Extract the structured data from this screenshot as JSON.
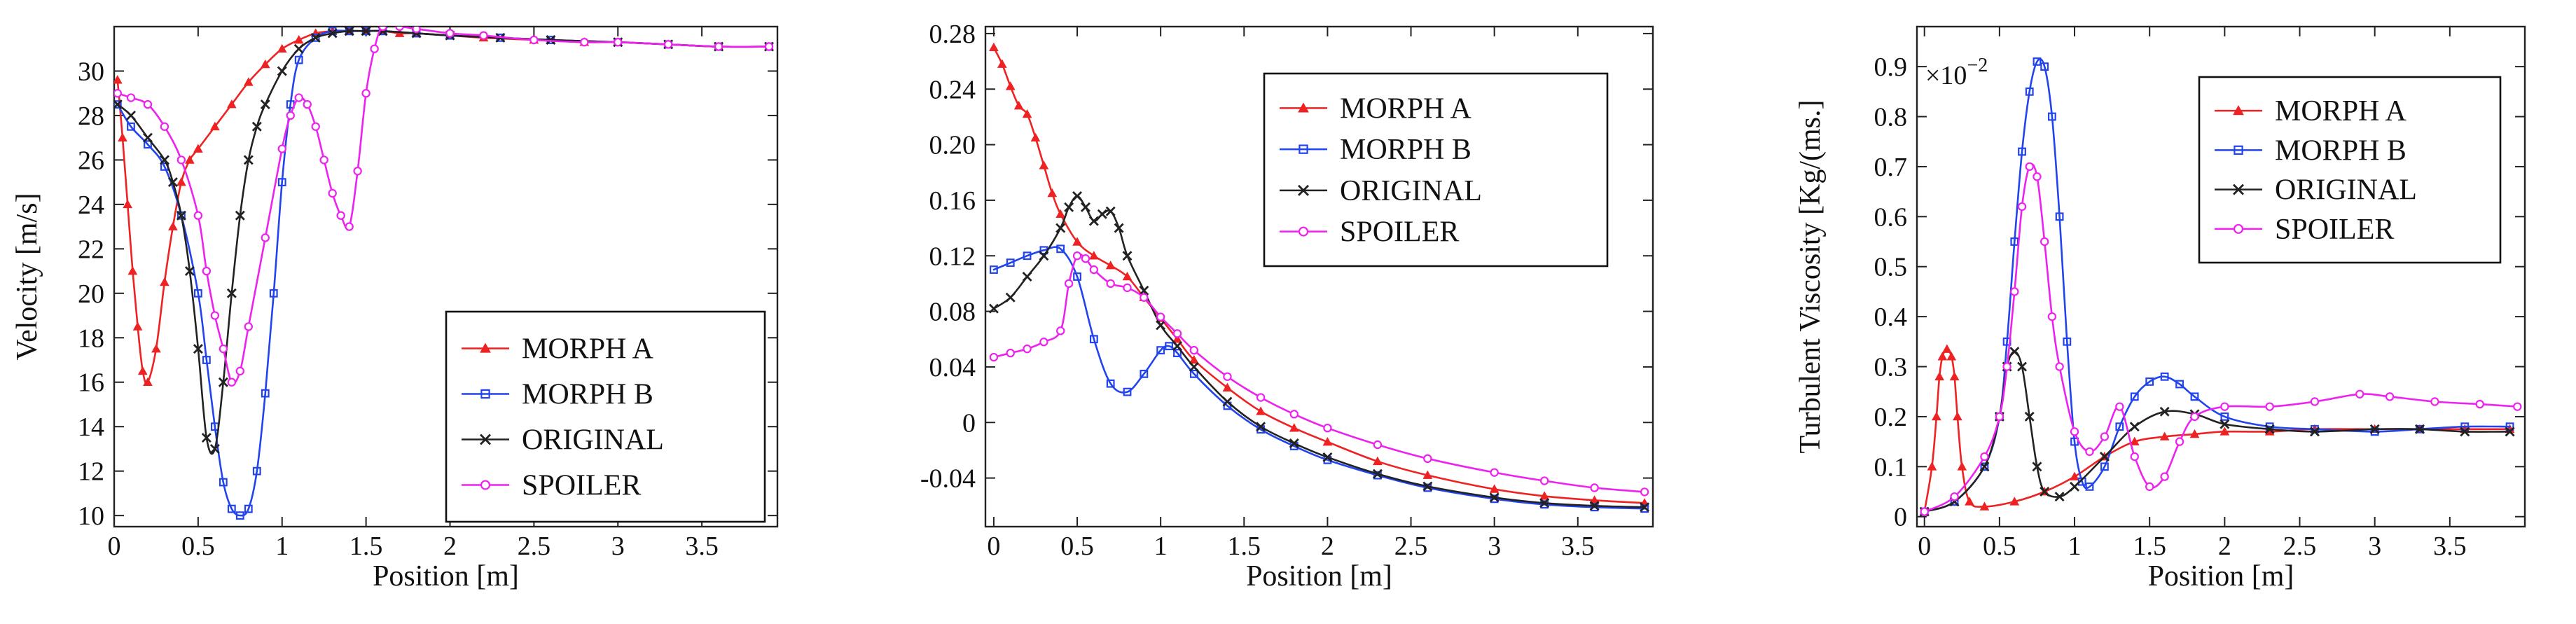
{
  "chart_data": [
    {
      "type": "line",
      "title": "",
      "xlabel": "Position [m]",
      "ylabel": "Velocity [m/s]",
      "xlim": [
        0,
        3.95
      ],
      "ylim": [
        9.5,
        32
      ],
      "xticks": [
        0,
        0.5,
        1,
        1.5,
        2,
        2.5,
        3,
        3.5
      ],
      "xtick_labels": [
        "0",
        "0.5",
        "1",
        "1.5",
        "2",
        "2.5",
        "3",
        "3.5"
      ],
      "yticks": [
        10,
        12,
        14,
        16,
        18,
        20,
        22,
        24,
        26,
        28,
        30
      ],
      "ytick_labels": [
        "10",
        "12",
        "14",
        "16",
        "18",
        "20",
        "22",
        "24",
        "26",
        "28",
        "30"
      ],
      "multiplier": "",
      "legend_position": "bottom-right",
      "series": [
        {
          "name": "MORPH A",
          "color": "#ee2222",
          "marker": "triangle",
          "x": [
            0.02,
            0.05,
            0.08,
            0.11,
            0.14,
            0.17,
            0.2,
            0.25,
            0.3,
            0.35,
            0.4,
            0.45,
            0.5,
            0.6,
            0.7,
            0.8,
            0.9,
            1.0,
            1.1,
            1.2,
            1.3,
            1.4,
            1.5,
            1.6,
            1.7,
            1.8,
            2.0,
            2.2,
            2.5,
            2.8,
            3.0,
            3.3,
            3.6,
            3.9
          ],
          "y": [
            29.6,
            27,
            24,
            21,
            18.5,
            16.5,
            16,
            17.5,
            20.5,
            23,
            25,
            26,
            26.5,
            27.5,
            28.5,
            29.5,
            30.3,
            31,
            31.4,
            31.7,
            31.8,
            31.8,
            31.8,
            31.8,
            31.7,
            31.7,
            31.6,
            31.5,
            31.4,
            31.3,
            31.3,
            31.2,
            31.1,
            31.1
          ]
        },
        {
          "name": "MORPH B",
          "color": "#2244ee",
          "marker": "square",
          "x": [
            0.02,
            0.1,
            0.2,
            0.3,
            0.4,
            0.5,
            0.55,
            0.6,
            0.65,
            0.7,
            0.75,
            0.8,
            0.85,
            0.9,
            0.95,
            1.0,
            1.05,
            1.1,
            1.2,
            1.3,
            1.4,
            1.5,
            1.6,
            1.8,
            2.0,
            2.3,
            2.6,
            3.0,
            3.3,
            3.6,
            3.9
          ],
          "y": [
            28.5,
            27.5,
            26.7,
            25.7,
            23.5,
            20,
            17,
            14,
            11.5,
            10.3,
            10,
            10.3,
            12,
            15.5,
            20,
            25,
            28.5,
            30.5,
            31.5,
            31.8,
            31.8,
            31.8,
            31.8,
            31.7,
            31.6,
            31.5,
            31.4,
            31.3,
            31.2,
            31.1,
            31.1
          ]
        },
        {
          "name": "ORIGINAL",
          "color": "#222222",
          "marker": "x",
          "x": [
            0.02,
            0.1,
            0.2,
            0.3,
            0.35,
            0.4,
            0.45,
            0.5,
            0.55,
            0.6,
            0.65,
            0.7,
            0.75,
            0.8,
            0.85,
            0.9,
            1.0,
            1.1,
            1.2,
            1.3,
            1.4,
            1.5,
            1.6,
            1.8,
            2.0,
            2.3,
            2.6,
            3.0,
            3.3,
            3.6,
            3.9
          ],
          "y": [
            28.5,
            28,
            27,
            26,
            25,
            23.5,
            21,
            17.5,
            13.5,
            13,
            16,
            20,
            23.5,
            26,
            27.5,
            28.5,
            30,
            31,
            31.5,
            31.7,
            31.8,
            31.8,
            31.8,
            31.7,
            31.6,
            31.5,
            31.4,
            31.3,
            31.2,
            31.1,
            31.1
          ]
        },
        {
          "name": "SPOILER",
          "color": "#ee22ee",
          "marker": "circle",
          "x": [
            0.02,
            0.1,
            0.2,
            0.3,
            0.4,
            0.5,
            0.55,
            0.6,
            0.65,
            0.7,
            0.75,
            0.8,
            0.9,
            1.0,
            1.05,
            1.1,
            1.15,
            1.2,
            1.25,
            1.3,
            1.35,
            1.4,
            1.45,
            1.5,
            1.55,
            1.6,
            1.7,
            1.8,
            2.0,
            2.2,
            2.5,
            2.8,
            3.0,
            3.3,
            3.6,
            3.9
          ],
          "y": [
            29,
            28.8,
            28.5,
            27.5,
            26,
            23.5,
            21,
            19,
            17.5,
            16,
            16.5,
            18.5,
            22.5,
            26.5,
            28,
            28.8,
            28.5,
            27.5,
            26,
            24.5,
            23.5,
            23,
            25.5,
            29,
            31,
            32,
            32,
            31.9,
            31.7,
            31.6,
            31.4,
            31.3,
            31.3,
            31.2,
            31.1,
            31.1
          ]
        }
      ]
    },
    {
      "type": "line",
      "title": "",
      "xlabel": "Position [m]",
      "ylabel": "",
      "xlim": [
        -0.05,
        3.95
      ],
      "ylim": [
        -0.075,
        0.285
      ],
      "xticks": [
        0,
        0.5,
        1,
        1.5,
        2,
        2.5,
        3,
        3.5
      ],
      "xtick_labels": [
        "0",
        "0.5",
        "1",
        "1.5",
        "2",
        "2.5",
        "3",
        "3.5"
      ],
      "yticks": [
        -0.04,
        0,
        0.04,
        0.08,
        0.12,
        0.16,
        0.2,
        0.24,
        0.28
      ],
      "ytick_labels": [
        "-0.04",
        "0",
        "0.04",
        "0.08",
        "0.12",
        "0.16",
        "0.20",
        "0.24",
        "0.28"
      ],
      "multiplier": "",
      "legend_position": "top-right",
      "series": [
        {
          "name": "MORPH A",
          "color": "#ee2222",
          "marker": "triangle",
          "x": [
            0.0,
            0.05,
            0.1,
            0.15,
            0.2,
            0.25,
            0.3,
            0.35,
            0.4,
            0.5,
            0.6,
            0.7,
            0.8,
            0.9,
            1.0,
            1.1,
            1.2,
            1.4,
            1.6,
            1.8,
            2.0,
            2.3,
            2.6,
            3.0,
            3.3,
            3.6,
            3.9
          ],
          "y": [
            0.27,
            0.258,
            0.242,
            0.228,
            0.222,
            0.205,
            0.185,
            0.165,
            0.15,
            0.13,
            0.12,
            0.113,
            0.105,
            0.09,
            0.075,
            0.06,
            0.045,
            0.025,
            0.008,
            -0.004,
            -0.014,
            -0.028,
            -0.038,
            -0.048,
            -0.053,
            -0.056,
            -0.058
          ]
        },
        {
          "name": "MORPH B",
          "color": "#2244ee",
          "marker": "square",
          "x": [
            0.0,
            0.1,
            0.2,
            0.3,
            0.4,
            0.5,
            0.6,
            0.7,
            0.8,
            0.9,
            1.0,
            1.05,
            1.1,
            1.2,
            1.4,
            1.6,
            1.8,
            2.0,
            2.3,
            2.6,
            3.0,
            3.3,
            3.6,
            3.9
          ],
          "y": [
            0.11,
            0.115,
            0.12,
            0.124,
            0.125,
            0.105,
            0.06,
            0.028,
            0.022,
            0.035,
            0.052,
            0.055,
            0.05,
            0.035,
            0.012,
            -0.005,
            -0.017,
            -0.027,
            -0.038,
            -0.047,
            -0.055,
            -0.059,
            -0.061,
            -0.062
          ]
        },
        {
          "name": "ORIGINAL",
          "color": "#222222",
          "marker": "x",
          "x": [
            0.0,
            0.1,
            0.2,
            0.3,
            0.4,
            0.45,
            0.5,
            0.55,
            0.6,
            0.65,
            0.7,
            0.75,
            0.8,
            0.9,
            1.0,
            1.1,
            1.2,
            1.4,
            1.6,
            1.8,
            2.0,
            2.3,
            2.6,
            3.0,
            3.3,
            3.6,
            3.9
          ],
          "y": [
            0.082,
            0.09,
            0.105,
            0.12,
            0.14,
            0.155,
            0.163,
            0.155,
            0.145,
            0.15,
            0.152,
            0.14,
            0.12,
            0.095,
            0.07,
            0.055,
            0.04,
            0.015,
            -0.003,
            -0.015,
            -0.025,
            -0.037,
            -0.046,
            -0.054,
            -0.058,
            -0.06,
            -0.061
          ]
        },
        {
          "name": "SPOILER",
          "color": "#ee22ee",
          "marker": "circle",
          "x": [
            0.0,
            0.1,
            0.2,
            0.3,
            0.4,
            0.45,
            0.5,
            0.55,
            0.6,
            0.7,
            0.8,
            0.9,
            1.0,
            1.1,
            1.2,
            1.4,
            1.6,
            1.8,
            2.0,
            2.3,
            2.6,
            3.0,
            3.3,
            3.6,
            3.9
          ],
          "y": [
            0.047,
            0.05,
            0.053,
            0.058,
            0.066,
            0.1,
            0.12,
            0.118,
            0.11,
            0.1,
            0.097,
            0.09,
            0.076,
            0.064,
            0.052,
            0.033,
            0.018,
            0.006,
            -0.004,
            -0.016,
            -0.026,
            -0.036,
            -0.042,
            -0.047,
            -0.05
          ]
        }
      ]
    },
    {
      "type": "line",
      "title": "",
      "xlabel": "Position [m]",
      "ylabel": "Turbulent Viscosity [Kg/(ms.]",
      "xlim": [
        -0.05,
        4.0
      ],
      "ylim": [
        -0.02,
        0.98
      ],
      "xticks": [
        0,
        0.5,
        1,
        1.5,
        2,
        2.5,
        3,
        3.5
      ],
      "xtick_labels": [
        "0",
        "0.5",
        "1",
        "1.5",
        "2",
        "2.5",
        "3",
        "3.5"
      ],
      "yticks": [
        0,
        0.1,
        0.2,
        0.3,
        0.4,
        0.5,
        0.6,
        0.7,
        0.8,
        0.9
      ],
      "ytick_labels": [
        "0",
        "0.1",
        "0.2",
        "0.3",
        "0.4",
        "0.5",
        "0.6",
        "0.7",
        "0.8",
        "0.9"
      ],
      "multiplier": "×10",
      "multiplier_exponent": "−2",
      "legend_position": "top-right",
      "series": [
        {
          "name": "MORPH A",
          "color": "#ee2222",
          "marker": "triangle",
          "x": [
            0.0,
            0.05,
            0.08,
            0.1,
            0.12,
            0.15,
            0.18,
            0.2,
            0.22,
            0.25,
            0.3,
            0.4,
            0.6,
            0.8,
            1.0,
            1.2,
            1.4,
            1.6,
            1.8,
            2.0,
            2.3,
            2.6,
            3.0,
            3.3,
            3.6,
            3.9
          ],
          "y": [
            0.01,
            0.1,
            0.2,
            0.28,
            0.32,
            0.335,
            0.32,
            0.28,
            0.2,
            0.1,
            0.03,
            0.02,
            0.03,
            0.05,
            0.08,
            0.12,
            0.15,
            0.16,
            0.165,
            0.17,
            0.17,
            0.175,
            0.175,
            0.175,
            0.175,
            0.175
          ]
        },
        {
          "name": "MORPH B",
          "color": "#2244ee",
          "marker": "square",
          "x": [
            0.0,
            0.2,
            0.4,
            0.5,
            0.55,
            0.6,
            0.65,
            0.7,
            0.75,
            0.8,
            0.85,
            0.9,
            0.95,
            1.0,
            1.05,
            1.1,
            1.2,
            1.3,
            1.4,
            1.5,
            1.6,
            1.7,
            1.8,
            2.0,
            2.3,
            2.6,
            3.0,
            3.3,
            3.6,
            3.9
          ],
          "y": [
            0.01,
            0.03,
            0.1,
            0.2,
            0.35,
            0.55,
            0.73,
            0.85,
            0.91,
            0.9,
            0.8,
            0.6,
            0.35,
            0.15,
            0.07,
            0.06,
            0.1,
            0.18,
            0.24,
            0.27,
            0.28,
            0.265,
            0.24,
            0.2,
            0.18,
            0.175,
            0.17,
            0.175,
            0.18,
            0.18
          ]
        },
        {
          "name": "ORIGINAL",
          "color": "#222222",
          "marker": "x",
          "x": [
            0.0,
            0.2,
            0.4,
            0.5,
            0.55,
            0.6,
            0.65,
            0.7,
            0.75,
            0.8,
            0.9,
            1.0,
            1.2,
            1.4,
            1.6,
            1.8,
            2.0,
            2.3,
            2.6,
            3.0,
            3.3,
            3.6,
            3.9
          ],
          "y": [
            0.01,
            0.03,
            0.1,
            0.2,
            0.3,
            0.33,
            0.3,
            0.2,
            0.1,
            0.05,
            0.04,
            0.06,
            0.12,
            0.18,
            0.21,
            0.205,
            0.185,
            0.175,
            0.17,
            0.175,
            0.175,
            0.17,
            0.17
          ]
        },
        {
          "name": "SPOILER",
          "color": "#ee22ee",
          "marker": "circle",
          "x": [
            0.0,
            0.2,
            0.4,
            0.5,
            0.55,
            0.6,
            0.65,
            0.7,
            0.75,
            0.8,
            0.85,
            0.9,
            1.0,
            1.1,
            1.2,
            1.3,
            1.4,
            1.5,
            1.6,
            1.7,
            1.8,
            2.0,
            2.3,
            2.6,
            2.9,
            3.1,
            3.4,
            3.7,
            3.95
          ],
          "y": [
            0.01,
            0.04,
            0.12,
            0.2,
            0.3,
            0.45,
            0.62,
            0.7,
            0.68,
            0.55,
            0.4,
            0.3,
            0.17,
            0.13,
            0.16,
            0.22,
            0.12,
            0.06,
            0.08,
            0.15,
            0.2,
            0.22,
            0.22,
            0.23,
            0.245,
            0.24,
            0.23,
            0.225,
            0.22
          ]
        }
      ]
    }
  ]
}
